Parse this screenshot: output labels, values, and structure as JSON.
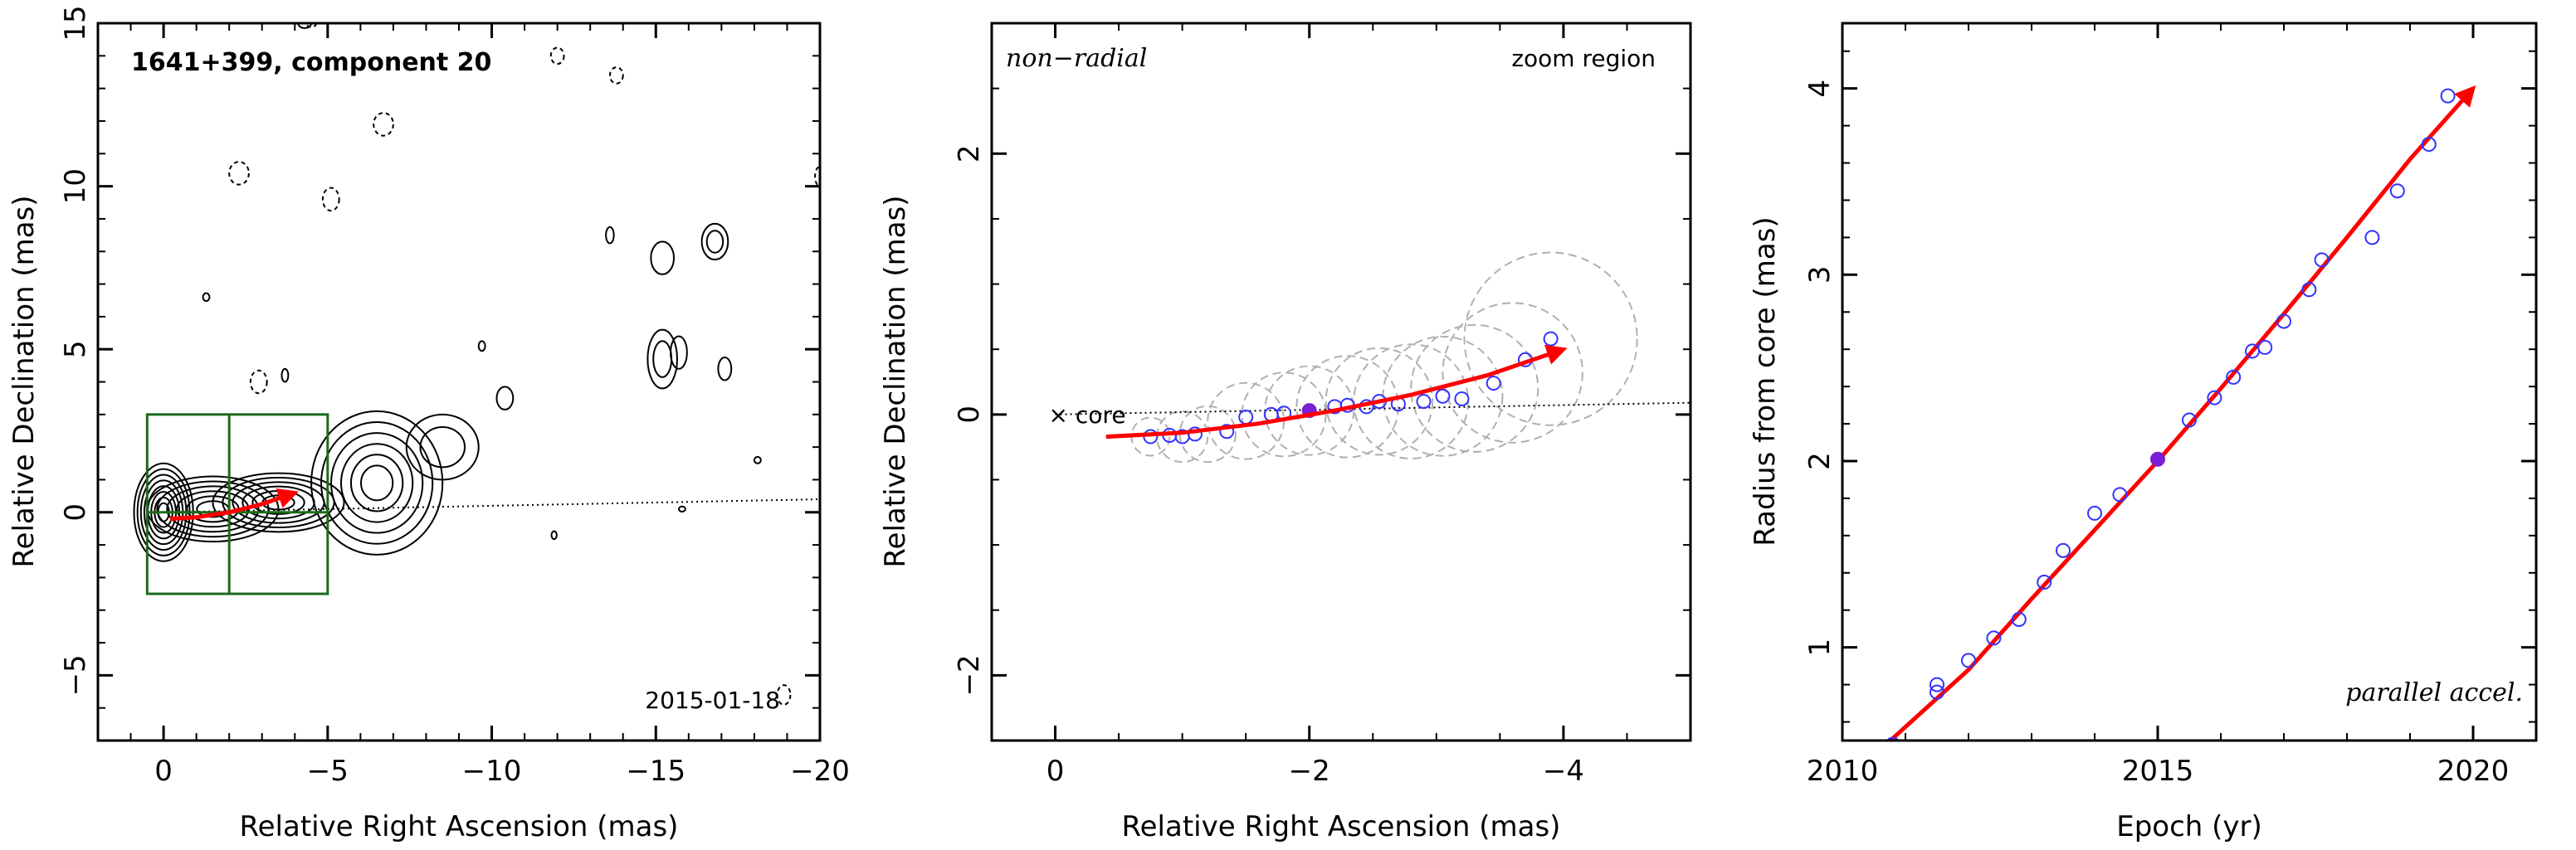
{
  "chart_data": [
    {
      "type": "scatter",
      "title": "1641+399, component 20",
      "xlabel": "Relative Right Ascension (mas)",
      "ylabel": "Relative Declination (mas)",
      "xlim": [
        2,
        -20
      ],
      "ylim": [
        -7,
        15
      ],
      "xticks": [
        0,
        -5,
        -10,
        -15,
        -20
      ],
      "xtick_labels": [
        "0",
        "−5",
        "−10",
        "−15",
        "−20"
      ],
      "yticks": [
        -5,
        0,
        5,
        10,
        15
      ],
      "ytick_labels": [
        "−5",
        "0",
        "5",
        "10",
        "15"
      ],
      "date_label": "2015-01-18",
      "zoom_box": {
        "ra": [
          0.5,
          -5
        ],
        "dec": [
          -2.5,
          3
        ],
        "ra_divider": -2
      },
      "jet_axis_end": [
        -20,
        0.4
      ],
      "trajectory": [
        [
          -0.2,
          -0.2
        ],
        [
          -1,
          -0.15
        ],
        [
          -2,
          0
        ],
        [
          -3,
          0.25
        ],
        [
          -4,
          0.6
        ]
      ],
      "contour_lobes": [
        {
          "ra": 0,
          "dec": 0,
          "rx": 0.9,
          "ry": 1.5,
          "levels": 8
        },
        {
          "ra": -1.5,
          "dec": 0.1,
          "rx": 2.0,
          "ry": 1.0,
          "levels": 6
        },
        {
          "ra": -3.5,
          "dec": 0.3,
          "rx": 2.0,
          "ry": 0.9,
          "levels": 6
        },
        {
          "ra": -6.5,
          "dec": 0.9,
          "rx": 2.0,
          "ry": 2.2,
          "levels": 6
        },
        {
          "ra": -8.5,
          "dec": 2.0,
          "rx": 1.1,
          "ry": 1.0,
          "levels": 2
        },
        {
          "ra": -15.2,
          "dec": 7.8,
          "rx": 0.35,
          "ry": 0.5,
          "levels": 1
        },
        {
          "ra": -16.8,
          "dec": 8.3,
          "rx": 0.4,
          "ry": 0.55,
          "levels": 2
        },
        {
          "ra": -15.2,
          "dec": 4.7,
          "rx": 0.45,
          "ry": 0.9,
          "levels": 2
        },
        {
          "ra": -15.7,
          "dec": 4.9,
          "rx": 0.25,
          "ry": 0.5,
          "levels": 1
        },
        {
          "ra": -17.1,
          "dec": 4.4,
          "rx": 0.2,
          "ry": 0.35,
          "levels": 1
        },
        {
          "ra": -10.4,
          "dec": 3.5,
          "rx": 0.25,
          "ry": 0.35,
          "levels": 1
        },
        {
          "ra": -9.7,
          "dec": 5.1,
          "rx": 0.1,
          "ry": 0.15,
          "levels": 1
        },
        {
          "ra": -13.6,
          "dec": 8.5,
          "rx": 0.12,
          "ry": 0.25,
          "levels": 1
        },
        {
          "ra": -1.3,
          "dec": 6.6,
          "rx": 0.1,
          "ry": 0.12,
          "levels": 1
        },
        {
          "ra": -3.7,
          "dec": 4.2,
          "rx": 0.1,
          "ry": 0.2,
          "levels": 1
        },
        {
          "ra": -18.1,
          "dec": 1.6,
          "rx": 0.1,
          "ry": 0.1,
          "levels": 1
        },
        {
          "ra": -11.9,
          "dec": -0.7,
          "rx": 0.08,
          "ry": 0.12,
          "levels": 1
        },
        {
          "ra": -15.8,
          "dec": 0.1,
          "rx": 0.1,
          "ry": 0.08,
          "levels": 1
        },
        {
          "ra": -4.3,
          "dec": 15,
          "rx": 0.2,
          "ry": 0.15,
          "levels": 1
        }
      ],
      "dashed_contours": [
        {
          "ra": -12,
          "dec": 14,
          "rx": 0.2,
          "ry": 0.25
        },
        {
          "ra": -13.8,
          "dec": 13.4,
          "rx": 0.2,
          "ry": 0.25
        },
        {
          "ra": -6.7,
          "dec": 11.9,
          "rx": 0.3,
          "ry": 0.35
        },
        {
          "ra": -2.3,
          "dec": 10.4,
          "rx": 0.3,
          "ry": 0.35
        },
        {
          "ra": -5.1,
          "dec": 9.6,
          "rx": 0.25,
          "ry": 0.35
        },
        {
          "ra": -2.9,
          "dec": 4.0,
          "rx": 0.25,
          "ry": 0.35
        },
        {
          "ra": -18.9,
          "dec": -5.6,
          "rx": 0.2,
          "ry": 0.3
        },
        {
          "ra": -20,
          "dec": 10.3,
          "rx": 0.15,
          "ry": 0.3
        },
        {
          "ra": -4.5,
          "dec": 15,
          "rx": 0.15,
          "ry": 0.12
        }
      ]
    },
    {
      "type": "scatter",
      "xlabel": "Relative Right Ascension (mas)",
      "ylabel": "Relative Declination (mas)",
      "xlim": [
        0.5,
        -5
      ],
      "ylim": [
        -2.5,
        3
      ],
      "xticks": [
        0,
        -2,
        -4
      ],
      "xtick_labels": [
        "0",
        "−2",
        "−4"
      ],
      "yticks": [
        -2,
        0,
        2
      ],
      "ytick_labels": [
        "−2",
        "0",
        "2"
      ],
      "left_note": "non−radial",
      "right_note": "zoom region",
      "core_label": "× core",
      "jet_axis_end": [
        -5,
        0.09
      ],
      "points": [
        {
          "ra": -0.75,
          "dec": -0.17
        },
        {
          "ra": -0.9,
          "dec": -0.16
        },
        {
          "ra": -1.0,
          "dec": -0.17
        },
        {
          "ra": -1.1,
          "dec": -0.15
        },
        {
          "ra": -1.35,
          "dec": -0.13
        },
        {
          "ra": -1.5,
          "dec": -0.02
        },
        {
          "ra": -1.7,
          "dec": 0.0
        },
        {
          "ra": -1.8,
          "dec": 0.01
        },
        {
          "ra": -2.0,
          "dec": 0.03,
          "filled": true
        },
        {
          "ra": -2.2,
          "dec": 0.06
        },
        {
          "ra": -2.3,
          "dec": 0.07
        },
        {
          "ra": -2.45,
          "dec": 0.06
        },
        {
          "ra": -2.55,
          "dec": 0.1
        },
        {
          "ra": -2.7,
          "dec": 0.08
        },
        {
          "ra": -2.9,
          "dec": 0.1
        },
        {
          "ra": -3.05,
          "dec": 0.14
        },
        {
          "ra": -3.2,
          "dec": 0.12
        },
        {
          "ra": -3.45,
          "dec": 0.24
        },
        {
          "ra": -3.7,
          "dec": 0.42
        },
        {
          "ra": -3.9,
          "dec": 0.58
        }
      ],
      "component_sizes": [
        {
          "ra": -0.75,
          "dec": -0.17,
          "r": 0.15
        },
        {
          "ra": -1.0,
          "dec": -0.17,
          "r": 0.2
        },
        {
          "ra": -1.2,
          "dec": -0.15,
          "r": 0.22
        },
        {
          "ra": -1.5,
          "dec": -0.05,
          "r": 0.3
        },
        {
          "ra": -1.8,
          "dec": 0.0,
          "r": 0.33
        },
        {
          "ra": -2.0,
          "dec": 0.03,
          "r": 0.35
        },
        {
          "ra": -2.3,
          "dec": 0.06,
          "r": 0.4
        },
        {
          "ra": -2.55,
          "dec": 0.1,
          "r": 0.42
        },
        {
          "ra": -2.8,
          "dec": 0.1,
          "r": 0.45
        },
        {
          "ra": -3.05,
          "dec": 0.14,
          "r": 0.47
        },
        {
          "ra": -3.3,
          "dec": 0.2,
          "r": 0.5
        },
        {
          "ra": -3.6,
          "dec": 0.32,
          "r": 0.55
        },
        {
          "ra": -3.9,
          "dec": 0.58,
          "r": 0.68
        }
      ],
      "trajectory": [
        [
          -0.4,
          -0.17
        ],
        [
          -1,
          -0.14
        ],
        [
          -1.6,
          -0.07
        ],
        [
          -2.2,
          0.03
        ],
        [
          -2.8,
          0.15
        ],
        [
          -3.4,
          0.3
        ],
        [
          -4,
          0.5
        ]
      ]
    },
    {
      "type": "scatter",
      "xlabel": "Epoch (yr)",
      "ylabel": "Radius from core (mas)",
      "xlim": [
        2010,
        2021
      ],
      "ylim": [
        0.5,
        4.35
      ],
      "xticks": [
        2010,
        2015,
        2020
      ],
      "xtick_labels": [
        "2010",
        "2015",
        "2020"
      ],
      "yticks": [
        1,
        2,
        3,
        4
      ],
      "ytick_labels": [
        "1",
        "2",
        "3",
        "4"
      ],
      "note": "parallel accel.",
      "points": [
        {
          "x": 2010.8,
          "y": 0.48
        },
        {
          "x": 2011.5,
          "y": 0.76
        },
        {
          "x": 2011.5,
          "y": 0.8
        },
        {
          "x": 2012.0,
          "y": 0.93
        },
        {
          "x": 2012.4,
          "y": 1.05
        },
        {
          "x": 2012.8,
          "y": 1.15
        },
        {
          "x": 2013.2,
          "y": 1.35
        },
        {
          "x": 2013.5,
          "y": 1.52
        },
        {
          "x": 2014.0,
          "y": 1.72
        },
        {
          "x": 2014.4,
          "y": 1.82
        },
        {
          "x": 2015.0,
          "y": 2.01,
          "filled": true
        },
        {
          "x": 2015.5,
          "y": 2.22
        },
        {
          "x": 2015.9,
          "y": 2.34
        },
        {
          "x": 2016.2,
          "y": 2.45
        },
        {
          "x": 2016.5,
          "y": 2.59
        },
        {
          "x": 2016.7,
          "y": 2.61
        },
        {
          "x": 2017.0,
          "y": 2.75
        },
        {
          "x": 2017.4,
          "y": 2.92
        },
        {
          "x": 2017.6,
          "y": 3.08
        },
        {
          "x": 2018.4,
          "y": 3.2
        },
        {
          "x": 2018.8,
          "y": 3.45
        },
        {
          "x": 2019.3,
          "y": 3.7
        },
        {
          "x": 2019.6,
          "y": 3.96
        }
      ],
      "fit": [
        [
          2010.5,
          0.42
        ],
        [
          2012,
          0.88
        ],
        [
          2013,
          1.26
        ],
        [
          2014,
          1.63
        ],
        [
          2015,
          2.0
        ],
        [
          2016,
          2.39
        ],
        [
          2017,
          2.79
        ],
        [
          2018,
          3.2
        ],
        [
          2019,
          3.62
        ],
        [
          2020,
          4.0
        ]
      ]
    }
  ],
  "colors": {
    "axes": "#000000",
    "contour": "#000000",
    "trajectory": "#ff0000",
    "points": "#3333ff",
    "filled_point": "#7a1fd6",
    "zoom_box": "#1b6b1b",
    "component_circles": "#b0b0b0"
  }
}
